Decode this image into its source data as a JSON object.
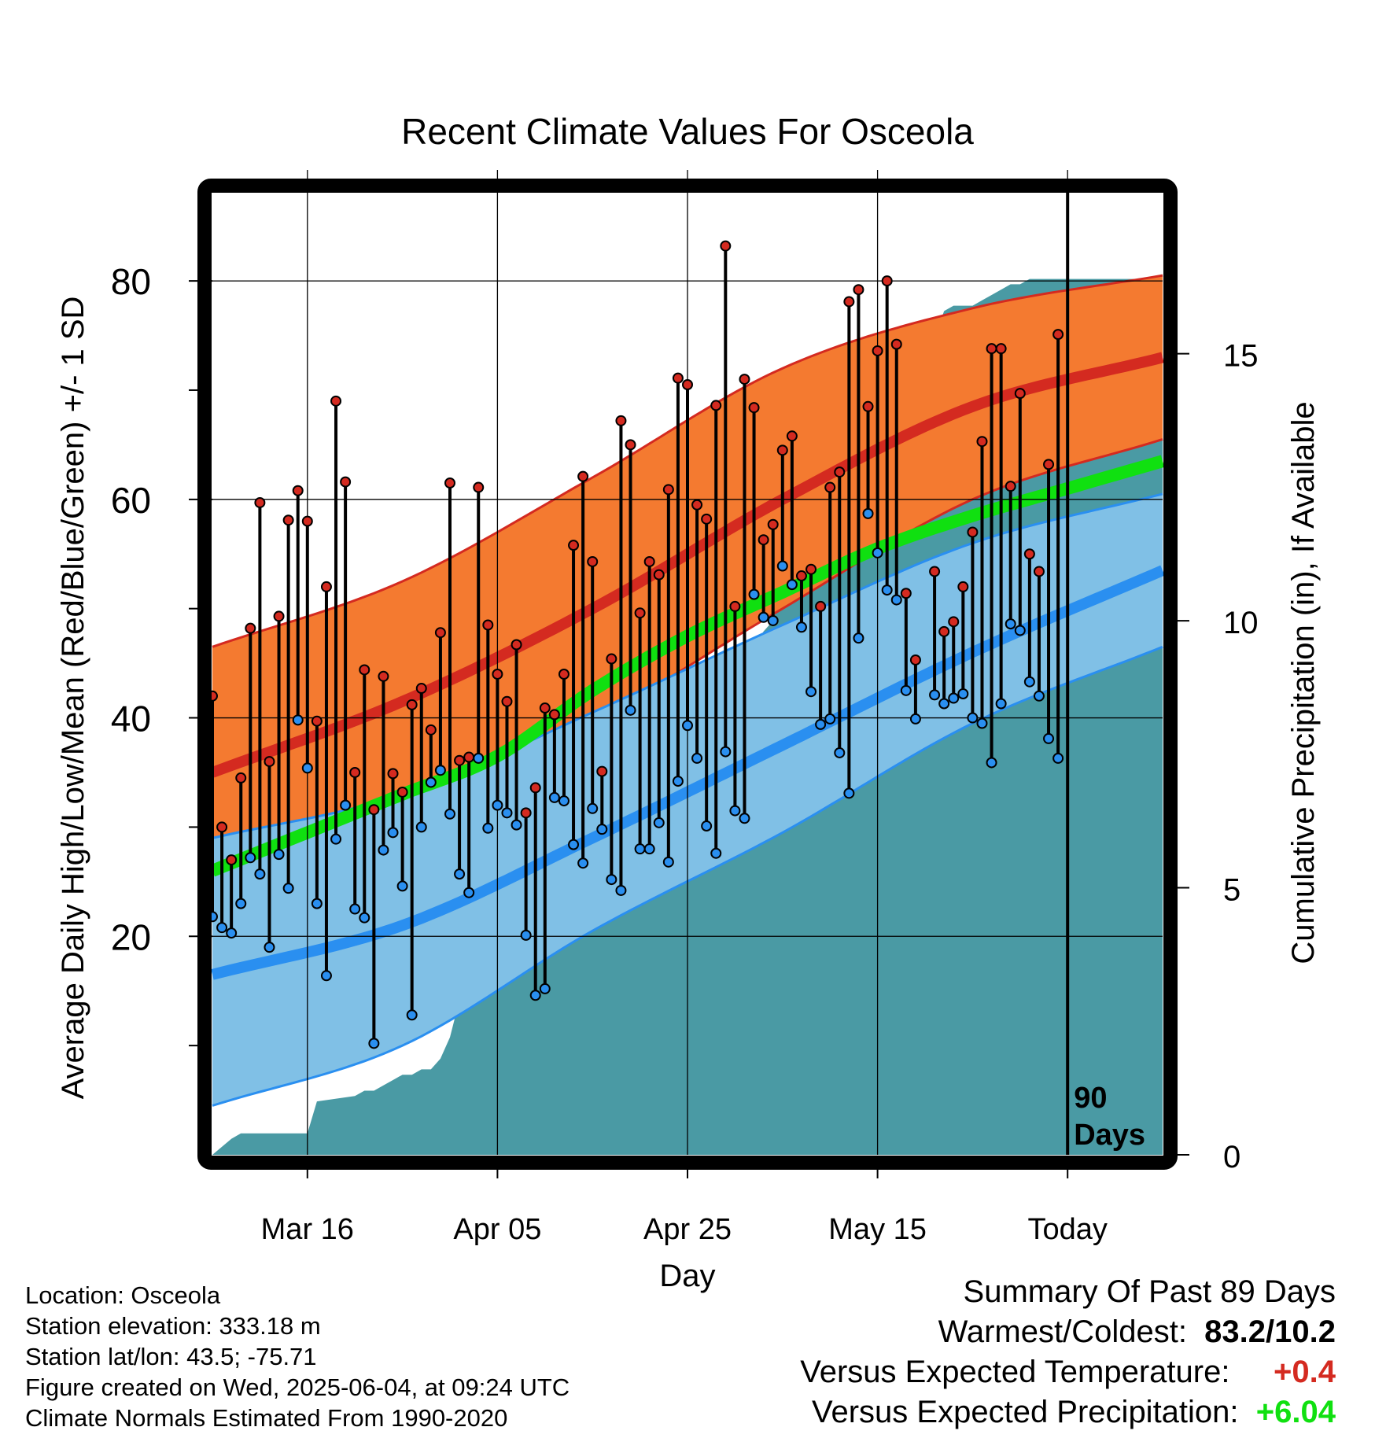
{
  "title": "Recent Climate Values For Osceola",
  "xlabel": "Day",
  "ylabel_left": "Average Daily High/Low/Mean (Red/Blue/Green) +/- 1 SD",
  "ylabel_right": "Cumulative Precipitation (in), If Available",
  "today_annotation": {
    "line1": "90",
    "line2": "Days"
  },
  "meta": {
    "location": "Location: Osceola",
    "elevation": "Station elevation: 333.18 m",
    "latlon": "Station lat/lon: 43.5; -75.71",
    "created": "Figure created on Wed, 2025-06-04, at 09:24 UTC",
    "normals": "Climate Normals Estimated From 1990-2020"
  },
  "summary": {
    "heading": "Summary Of Past 89 Days",
    "warmest_label": "Warmest/Coldest:",
    "warmest_value": "83.2/10.2",
    "temp_label": "Versus Expected Temperature:",
    "temp_value": "+0.4",
    "precip_label": "Versus Expected Precipitation:",
    "precip_value": "+6.04"
  },
  "colors": {
    "high_band": "#f47a30",
    "high_mean": "#d42a20",
    "low_band": "#80c0e6",
    "low_mean": "#2a8ff0",
    "mean": "#10e010",
    "precip": "#4a9aa4",
    "high_dot": "#d42a20",
    "low_dot": "#2a8ff0",
    "temp_delta": "#d42a20",
    "precip_delta": "#10e010"
  },
  "chart_data": {
    "type": "line",
    "x_axis": {
      "ticks": [
        10,
        30,
        50,
        70,
        90
      ],
      "labels": [
        "Mar 16",
        "Apr 05",
        "Apr 25",
        "May 15",
        "Today"
      ],
      "range": [
        0,
        100
      ]
    },
    "y_left": {
      "range": [
        0,
        88
      ],
      "ticks": [
        20,
        40,
        60,
        80
      ]
    },
    "y_right": {
      "range": [
        0,
        18
      ],
      "ticks": [
        0,
        5,
        10,
        15
      ]
    },
    "today_day": 90,
    "normal_high": {
      "x": [
        0,
        20,
        40,
        60,
        80,
        100
      ],
      "mean": [
        35,
        41.5,
        50,
        60,
        68.5,
        73
      ],
      "upper": [
        46.5,
        52.5,
        62,
        72,
        77.5,
        80.5
      ],
      "lower": [
        25,
        30.5,
        39.5,
        50,
        60,
        65.5
      ]
    },
    "normal_low": {
      "x": [
        0,
        20,
        40,
        60,
        80,
        100
      ],
      "mean": [
        16.5,
        21,
        29,
        37.5,
        46,
        53.5
      ],
      "upper": [
        29,
        33,
        40.5,
        48.5,
        56,
        60.5
      ],
      "lower": [
        4.5,
        10,
        20.5,
        29.5,
        39.5,
        46.5
      ]
    },
    "normal_mean": {
      "x": [
        0,
        10,
        20,
        30,
        40,
        50,
        60,
        70,
        80,
        90,
        100
      ],
      "values": [
        26,
        29.5,
        33,
        36.5,
        42.5,
        47.5,
        51.5,
        55.5,
        58.5,
        61,
        63.5
      ]
    },
    "daily": {
      "day": [
        0,
        1,
        2,
        3,
        4,
        5,
        6,
        7,
        8,
        9,
        10,
        11,
        12,
        13,
        14,
        15,
        16,
        17,
        18,
        19,
        20,
        21,
        22,
        23,
        24,
        25,
        26,
        27,
        28,
        29,
        30,
        31,
        32,
        33,
        34,
        35,
        36,
        37,
        38,
        39,
        40,
        41,
        42,
        43,
        44,
        45,
        46,
        47,
        48,
        49,
        50,
        51,
        52,
        53,
        54,
        55,
        56,
        57,
        58,
        59,
        60,
        61,
        62,
        63,
        64,
        65,
        66,
        67,
        68,
        69,
        70,
        71,
        72,
        73,
        74,
        75,
        76,
        77,
        78,
        79,
        80,
        81,
        82,
        83,
        84,
        85,
        86,
        87,
        88,
        89
      ],
      "high": [
        42.0,
        30.0,
        27.0,
        34.5,
        48.2,
        59.7,
        36.0,
        49.3,
        58.1,
        60.8,
        58.0,
        39.7,
        52.0,
        69.0,
        61.6,
        35.0,
        44.4,
        31.6,
        43.8,
        34.9,
        33.2,
        41.2,
        42.7,
        38.9,
        47.8,
        61.5,
        36.1,
        36.4,
        61.1,
        48.5,
        44.0,
        41.5,
        46.7,
        31.3,
        33.6,
        40.9,
        40.3,
        44.0,
        55.8,
        62.1,
        54.3,
        35.1,
        45.4,
        67.2,
        65.0,
        49.6,
        54.3,
        53.1,
        60.9,
        71.1,
        70.5,
        59.5,
        58.2,
        68.6,
        83.2,
        50.2,
        71.0,
        68.4,
        56.3,
        57.7,
        64.5,
        65.8,
        53.0,
        53.6,
        50.2,
        61.1,
        62.5,
        78.1,
        79.2,
        68.5,
        73.6,
        80.0,
        74.2,
        51.4,
        45.3,
        null,
        53.4,
        47.9,
        48.8,
        52.0,
        57.0,
        65.3,
        73.8,
        73.8,
        61.2,
        69.7,
        55.0,
        53.4,
        63.2,
        75.1
      ],
      "low": [
        21.8,
        20.8,
        20.3,
        23.0,
        27.2,
        25.7,
        19.0,
        27.5,
        24.4,
        39.8,
        35.4,
        23.0,
        16.4,
        28.9,
        32.0,
        22.5,
        21.7,
        10.2,
        27.9,
        29.5,
        24.6,
        12.8,
        30.0,
        34.1,
        35.2,
        31.2,
        25.7,
        24.0,
        36.3,
        29.9,
        32.0,
        31.3,
        30.2,
        20.1,
        14.6,
        15.2,
        32.7,
        32.4,
        28.4,
        26.7,
        31.7,
        29.8,
        25.2,
        24.2,
        40.7,
        28.0,
        28.0,
        30.4,
        26.8,
        34.2,
        39.3,
        36.3,
        30.1,
        27.6,
        36.9,
        31.5,
        30.8,
        51.3,
        49.2,
        48.9,
        53.9,
        52.2,
        48.3,
        42.4,
        39.4,
        39.9,
        36.8,
        33.1,
        47.3,
        58.7,
        55.1,
        51.7,
        50.8,
        42.5,
        39.9,
        null,
        42.1,
        41.3,
        41.8,
        42.2,
        40.0,
        39.5,
        35.9,
        41.3,
        48.6,
        48.0,
        43.3,
        42.0,
        38.1,
        36.3
      ]
    },
    "precip_cumulative": {
      "day": [
        0,
        2,
        3,
        10,
        11,
        15,
        16,
        17,
        18,
        19,
        20,
        21,
        22,
        23,
        24,
        25,
        26,
        27,
        28,
        29,
        30,
        31,
        32,
        33,
        34,
        35,
        36,
        37,
        38,
        39,
        40,
        41,
        42,
        43,
        44,
        45,
        46,
        47,
        48,
        49,
        50,
        51,
        52,
        53,
        54,
        55,
        56,
        57,
        58,
        59,
        60,
        61,
        62,
        63,
        64,
        65,
        66,
        67,
        68,
        69,
        70,
        71,
        72,
        73,
        74,
        75,
        76,
        77,
        78,
        79,
        80,
        81,
        82,
        83,
        84,
        85,
        86,
        87,
        88,
        89,
        100
      ],
      "value": [
        0,
        0.3,
        0.4,
        0.4,
        1.0,
        1.1,
        1.2,
        1.2,
        1.3,
        1.4,
        1.5,
        1.5,
        1.6,
        1.6,
        1.8,
        2.2,
        2.9,
        3.0,
        3.3,
        4.2,
        4.7,
        4.9,
        5.0,
        5.1,
        5.3,
        5.5,
        5.6,
        5.8,
        5.9,
        6.0,
        6.1,
        6.2,
        6.3,
        6.3,
        6.5,
        6.5,
        7.2,
        7.5,
        7.6,
        7.7,
        7.7,
        8.2,
        8.3,
        8.7,
        8.9,
        8.9,
        9.0,
        9.5,
        9.8,
        10.0,
        11.0,
        12.0,
        12.3,
        12.5,
        12.6,
        12.6,
        12.6,
        12.6,
        12.6,
        12.6,
        12.7,
        12.7,
        13.5,
        14.5,
        14.9,
        15.0,
        15.3,
        15.8,
        15.9,
        15.9,
        15.9,
        16.0,
        16.1,
        16.2,
        16.3,
        16.3,
        16.4,
        16.4,
        16.4,
        16.4,
        16.4
      ]
    }
  }
}
